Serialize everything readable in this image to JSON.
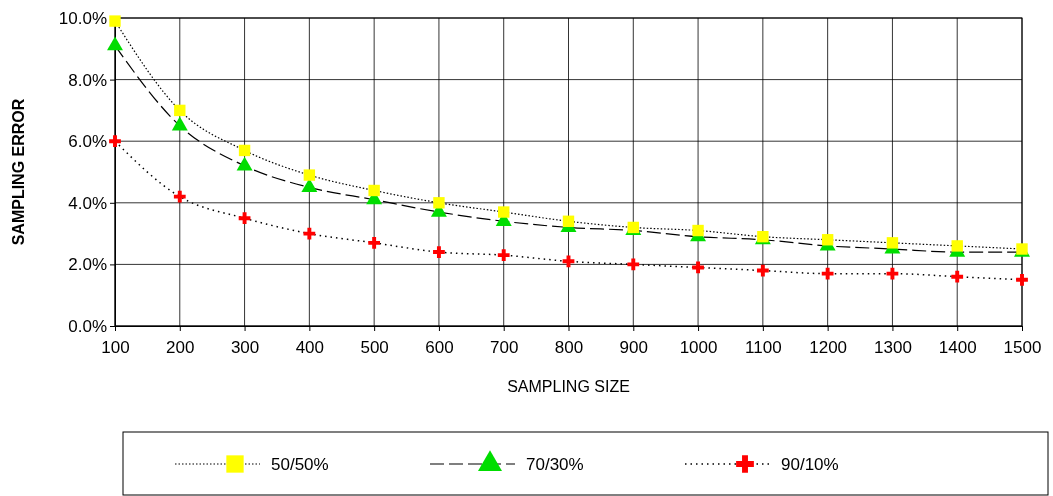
{
  "chart_data": {
    "type": "line",
    "xlabel": "SAMPLING SIZE",
    "ylabel": "SAMPLING ERROR",
    "x": [
      100,
      200,
      300,
      400,
      500,
      600,
      700,
      800,
      900,
      1000,
      1100,
      1200,
      1300,
      1400,
      1500
    ],
    "xlim": [
      100,
      1500
    ],
    "xticks": [
      100,
      200,
      300,
      400,
      500,
      600,
      700,
      800,
      900,
      1000,
      1100,
      1200,
      1300,
      1400,
      1500
    ],
    "ylim": [
      0,
      10
    ],
    "yticks": [
      {
        "value": 0,
        "label": "0.0%"
      },
      {
        "value": 2,
        "label": "2.0%"
      },
      {
        "value": 4,
        "label": "4.0%"
      },
      {
        "value": 6,
        "label": "6.0%"
      },
      {
        "value": 8,
        "label": "8.0%"
      },
      {
        "value": 10,
        "label": "10.0%"
      }
    ],
    "grid": true,
    "legend": "bottom",
    "series": [
      {
        "name": "50/50%",
        "color": "#ffff00",
        "marker": "square",
        "line_style": "dotted",
        "values": [
          9.9,
          7.0,
          5.7,
          4.9,
          4.4,
          4.0,
          3.7,
          3.4,
          3.2,
          3.1,
          2.9,
          2.8,
          2.7,
          2.6,
          2.5
        ]
      },
      {
        "name": "70/30%",
        "color": "#00dd00",
        "marker": "triangle",
        "line_style": "dashed",
        "values": [
          9.1,
          6.5,
          5.2,
          4.5,
          4.1,
          3.7,
          3.4,
          3.2,
          3.1,
          2.9,
          2.8,
          2.6,
          2.5,
          2.4,
          2.4
        ]
      },
      {
        "name": "90/10%",
        "color": "#ff0000",
        "marker": "cross",
        "line_style": "dotted",
        "values": [
          6.0,
          4.2,
          3.5,
          3.0,
          2.7,
          2.4,
          2.3,
          2.1,
          2.0,
          1.9,
          1.8,
          1.7,
          1.7,
          1.6,
          1.5
        ]
      }
    ]
  }
}
